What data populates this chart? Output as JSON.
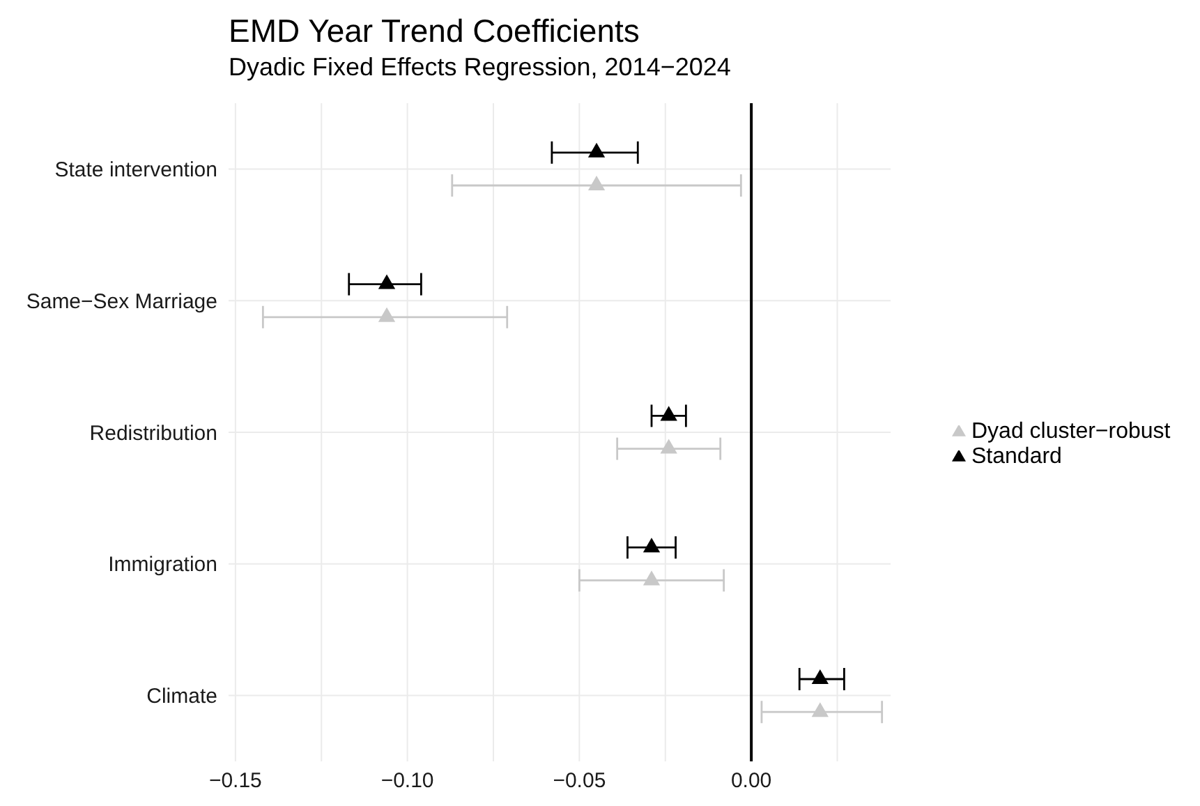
{
  "chart_data": {
    "type": "scatter",
    "title": "EMD Year Trend Coefficients",
    "subtitle": "Dyadic Fixed Effects Regression, 2014−2024",
    "orientation": "horizontal",
    "categories": [
      "State intervention",
      "Same−Sex Marriage",
      "Redistribution",
      "Immigration",
      "Climate"
    ],
    "series": [
      {
        "name": "Dyad cluster−robust",
        "color": "#c8c8c8",
        "values": [
          -0.045,
          -0.106,
          -0.024,
          -0.029,
          0.02
        ],
        "errors": [
          [
            -0.087,
            -0.003
          ],
          [
            -0.142,
            -0.071
          ],
          [
            -0.039,
            -0.009
          ],
          [
            -0.05,
            -0.008
          ],
          [
            0.003,
            0.038
          ]
        ]
      },
      {
        "name": "Standard",
        "color": "#000000",
        "values": [
          -0.045,
          -0.106,
          -0.024,
          -0.029,
          0.02
        ],
        "errors": [
          [
            -0.058,
            -0.033
          ],
          [
            -0.117,
            -0.096
          ],
          [
            -0.029,
            -0.019
          ],
          [
            -0.036,
            -0.022
          ],
          [
            0.014,
            0.027
          ]
        ]
      }
    ],
    "xlim": [
      -0.152,
      0.0405
    ],
    "xticks": [
      {
        "value": -0.15,
        "label": "−0.15"
      },
      {
        "value": -0.125,
        "label": null
      },
      {
        "value": -0.1,
        "label": "−0.10"
      },
      {
        "value": -0.075,
        "label": null
      },
      {
        "value": -0.05,
        "label": "−0.05"
      },
      {
        "value": -0.025,
        "label": null
      },
      {
        "value": 0,
        "label": "0.00"
      },
      {
        "value": 0.025,
        "label": null
      }
    ],
    "ref_lines": [
      {
        "axis": "x",
        "value": 0,
        "color": "#000000"
      }
    ],
    "grid": true,
    "legend": "right",
    "marker": "triangle"
  }
}
